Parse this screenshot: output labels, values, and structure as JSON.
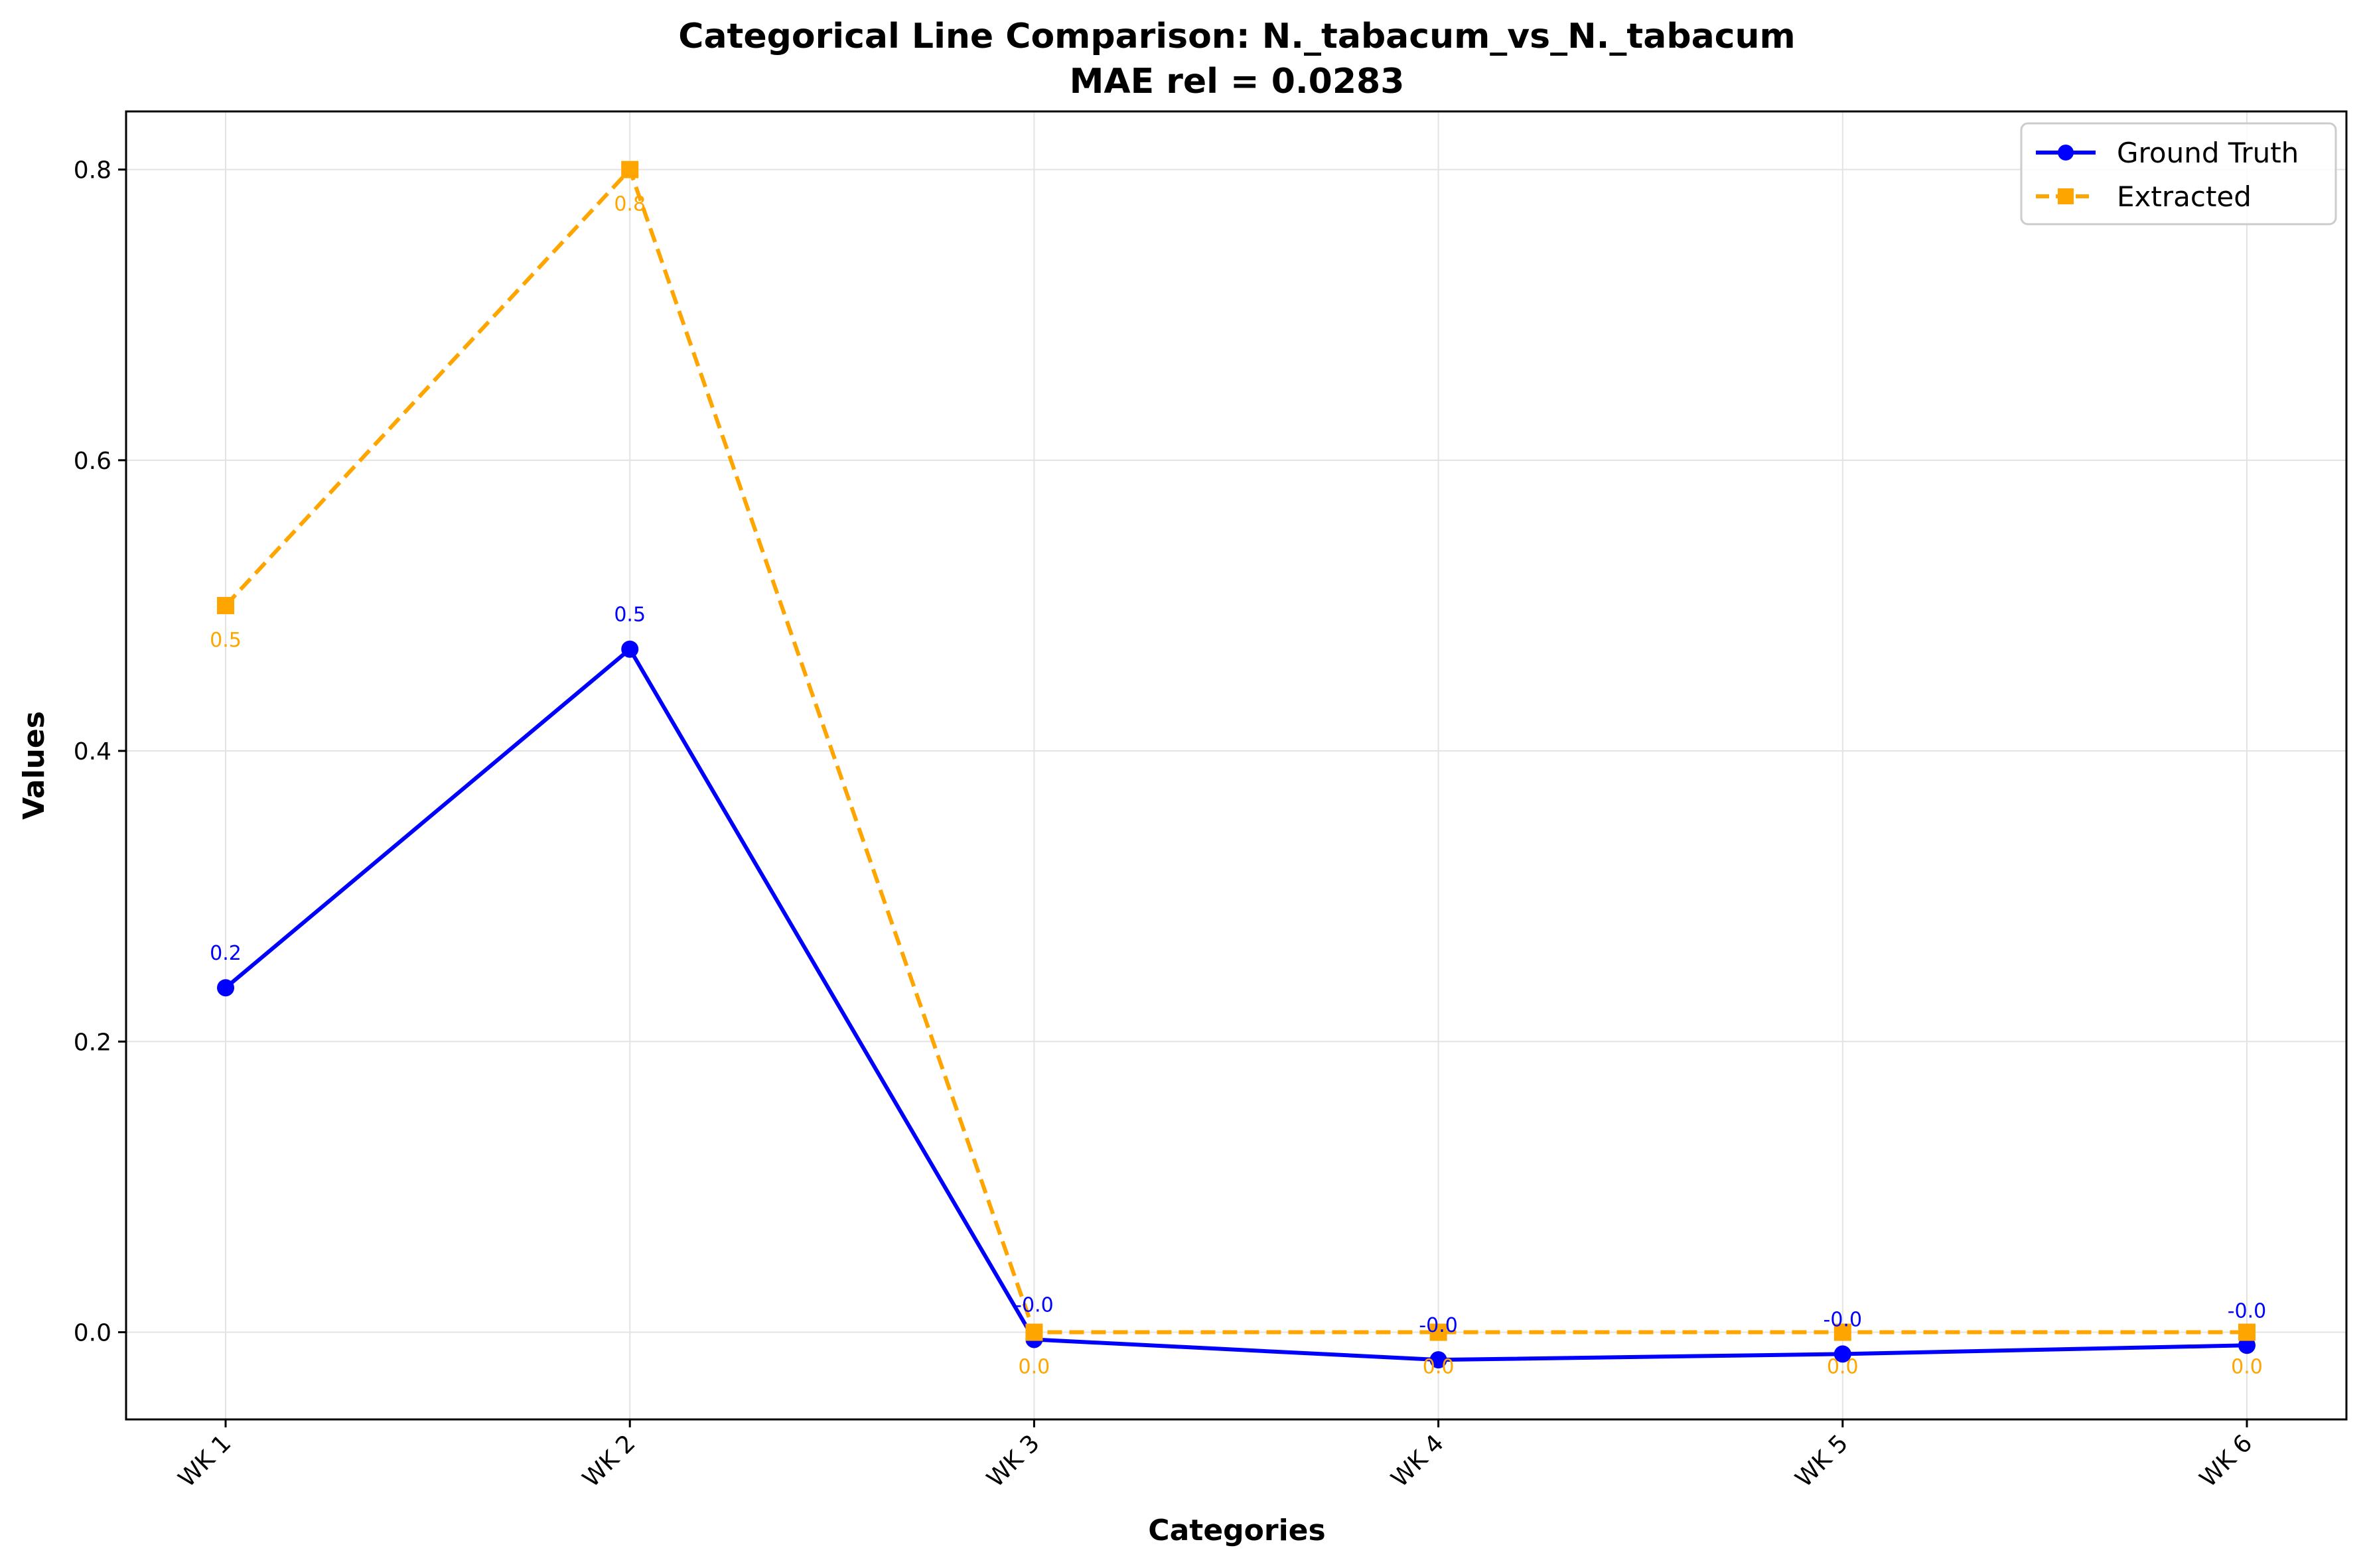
{
  "chart_data": {
    "type": "line",
    "title": "Categorical Line Comparison: N._tabacum_vs_N._tabacum",
    "subtitle": "MAE rel = 0.0283",
    "xlabel": "Categories",
    "ylabel": "Values",
    "categories": [
      "WK 1",
      "WK 2",
      "WK 3",
      "WK 4",
      "WK 5",
      "WK 6"
    ],
    "ylim": [
      -0.06,
      0.84
    ],
    "yticks": [
      0.0,
      0.2,
      0.4,
      0.6,
      0.8
    ],
    "ytick_labels": [
      "0.0",
      "0.2",
      "0.4",
      "0.6",
      "0.8"
    ],
    "grid": true,
    "legend_position": "top-right",
    "series": [
      {
        "name": "Ground Truth",
        "color": "#0000ff",
        "line_style": "solid",
        "marker": "circle",
        "values": [
          0.237,
          0.47,
          -0.005,
          -0.019,
          -0.015,
          -0.009
        ],
        "labels": [
          "0.2",
          "0.5",
          "-0.0",
          "-0.0",
          "-0.0",
          "-0.0"
        ]
      },
      {
        "name": "Extracted",
        "color": "#ffa500",
        "line_style": "dashed",
        "marker": "square",
        "values": [
          0.5,
          0.8,
          0.0,
          0.0,
          0.0,
          0.0
        ],
        "labels": [
          "0.5",
          "0.8",
          "0.0",
          "0.0",
          "0.0",
          "0.0"
        ]
      }
    ]
  }
}
